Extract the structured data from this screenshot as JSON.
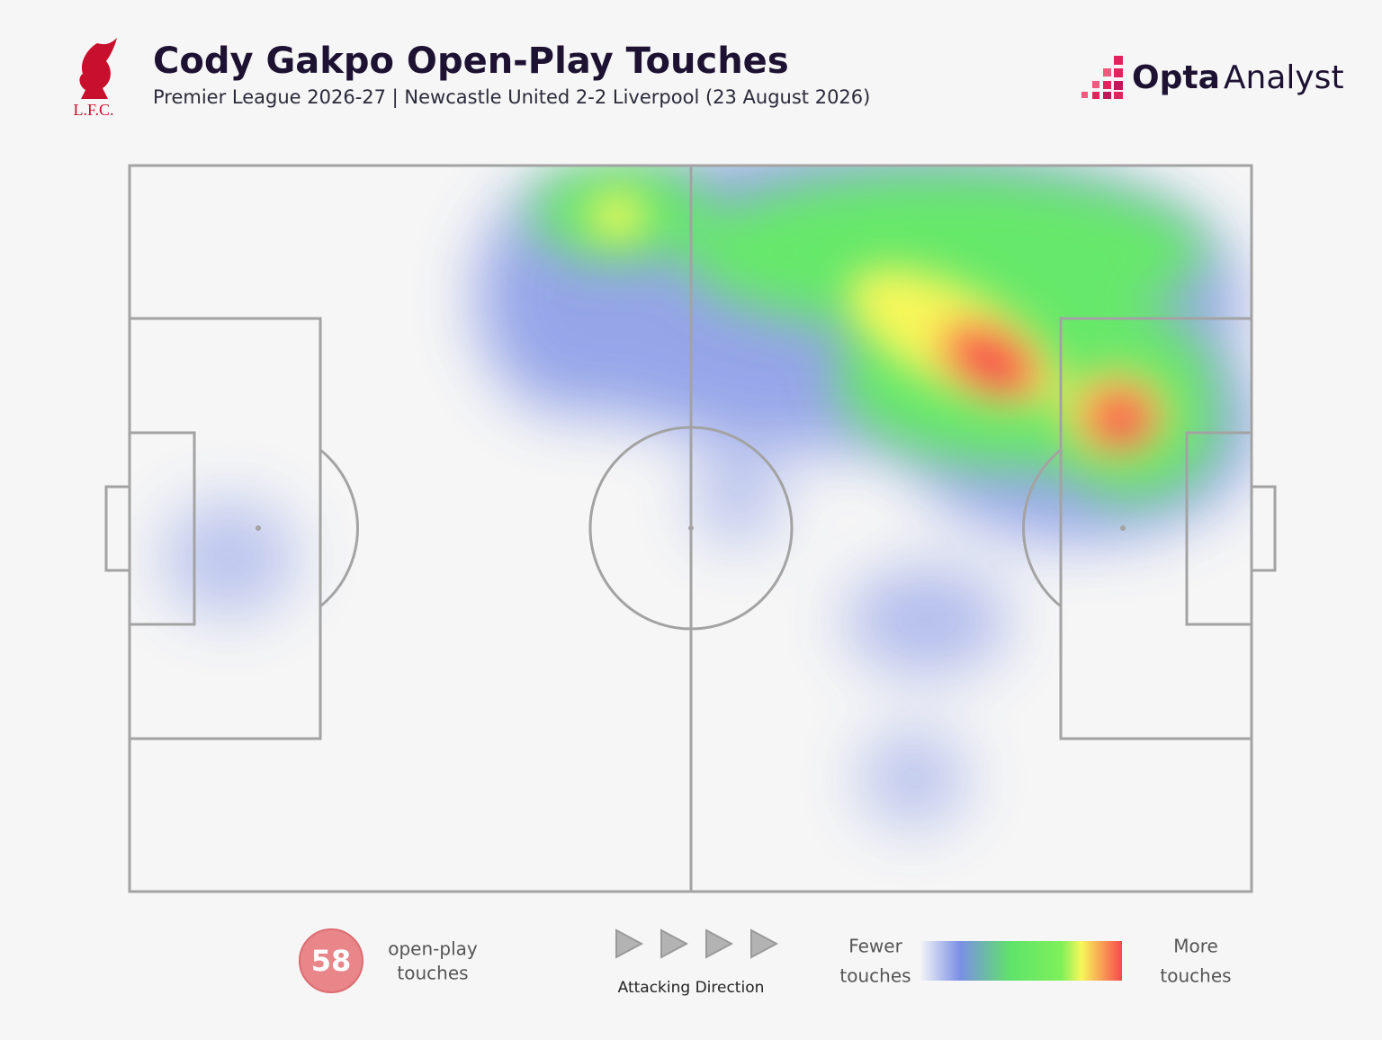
{
  "header": {
    "title": "Cody Gakpo Open-Play Touches",
    "subtitle": "Premier League 2026-27 | Newcastle United 2-2 Liverpool (23 August 2026)",
    "club": "L.F.C.",
    "brand": {
      "bold": "Opta",
      "light": "Analyst"
    }
  },
  "legend": {
    "touches": 58,
    "touches_label": [
      "open-play",
      "touches"
    ],
    "direction": "Attacking Direction",
    "fewer": [
      "Fewer",
      "touches"
    ],
    "more": [
      "More",
      "touches"
    ]
  }
}
